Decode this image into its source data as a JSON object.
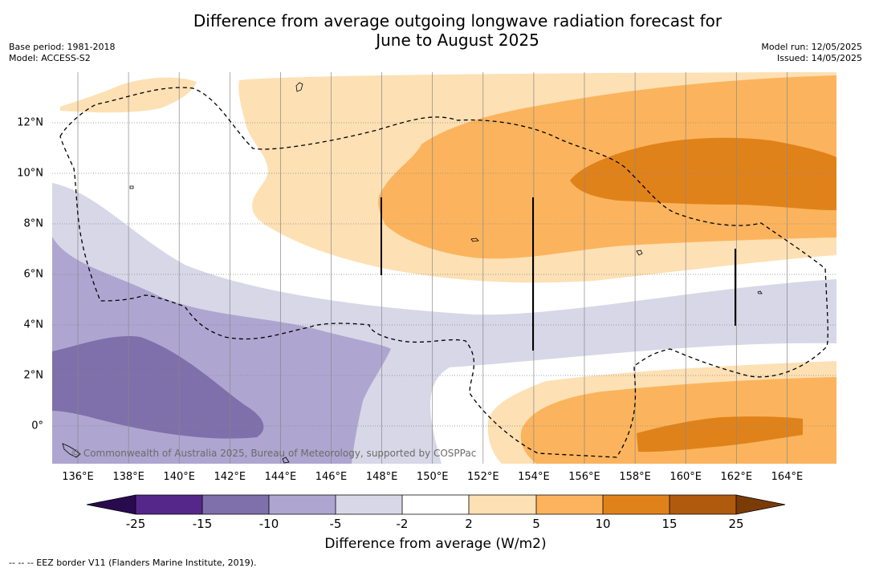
{
  "title_line1": "Difference from average outgoing longwave radiation forecast for",
  "title_line2": "June to August 2025",
  "base_period": "Base period: 1981-2018",
  "model": "Model: ACCESS-S2",
  "model_run": "Model run: 12/05/2025",
  "issued": "Issued: 14/05/2025",
  "copyright": "© Commonwealth of Australia 2025, Bureau of Meteorology, supported by COSPPac",
  "x_ticks": [
    "136°E",
    "138°E",
    "140°E",
    "142°E",
    "144°E",
    "146°E",
    "148°E",
    "150°E",
    "152°E",
    "154°E",
    "156°E",
    "158°E",
    "160°E",
    "162°E",
    "164°E"
  ],
  "y_ticks": [
    "12°N",
    "10°N",
    "8°N",
    "6°N",
    "4°N",
    "2°N",
    "0°"
  ],
  "colorbar": {
    "label": "Difference from average (W/m2)",
    "ticks": [
      "-25",
      "-15",
      "-10",
      "-5",
      "-2",
      "2",
      "5",
      "10",
      "15",
      "25"
    ],
    "colors": {
      "under": "#2a0a4e",
      "c1": "#55278a",
      "c2": "#7f6faa",
      "c3": "#aea6d0",
      "c4": "#d7d7e8",
      "c5": "#ffffff",
      "c6": "#fde0b4",
      "c7": "#fbb45d",
      "c8": "#e0821a",
      "c9": "#b05a0e",
      "over": "#7a3b06"
    }
  },
  "legend_footnote": "--  --  -- EEZ border V11 (Flanders Marine Institute, 2019)."
}
